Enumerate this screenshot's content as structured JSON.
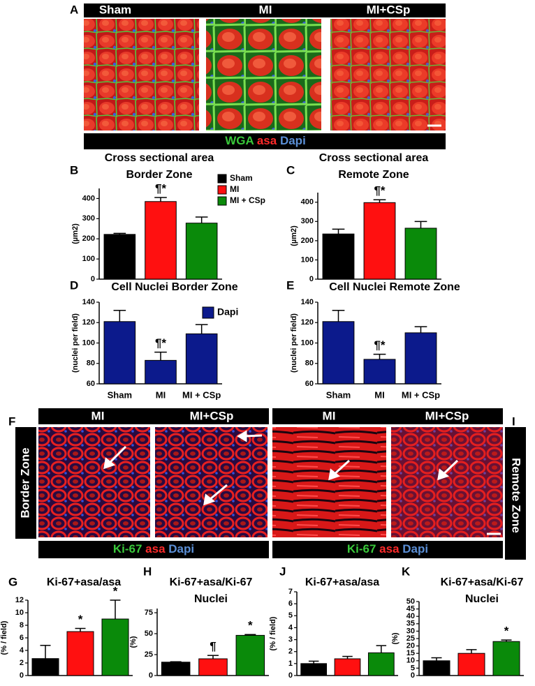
{
  "panel_labels": [
    "A",
    "B",
    "C",
    "D",
    "E",
    "F",
    "I",
    "G",
    "H",
    "J",
    "K"
  ],
  "panel_a": {
    "headers": [
      "Sham",
      "MI",
      "MI+CSp"
    ],
    "stain": [
      {
        "text": "WGA",
        "color": "#39c83a"
      },
      {
        "text": "asa",
        "color": "#ff2a2a"
      },
      {
        "text": "Dapi",
        "color": "#5b8fd6"
      }
    ]
  },
  "panel_f": {
    "headers": [
      "MI",
      "MI+CSp",
      "MI",
      "MI+CSp"
    ],
    "side_labels": [
      "Border Zone",
      "Remote Zone"
    ],
    "stain": [
      {
        "text": "Ki-67",
        "color": "#39c83a"
      },
      {
        "text": "asa",
        "color": "#ff2a2a"
      },
      {
        "text": "Dapi",
        "color": "#5b8fd6"
      }
    ]
  },
  "chart_data": [
    {
      "type": "bar",
      "title": "Cross sectional area",
      "subtitle": "Border Zone",
      "ylabel": "(µm2)",
      "categories": [
        null,
        null,
        null
      ],
      "values": [
        222,
        385,
        278
      ],
      "errors": [
        5,
        20,
        30
      ],
      "colors": [
        "#000000",
        "#ff1010",
        "#0a8a0a"
      ],
      "annotations": [
        null,
        "¶*",
        null
      ],
      "legend": [
        {
          "name": "Sham",
          "color": "#000000"
        },
        {
          "name": "MI",
          "color": "#ff1010"
        },
        {
          "name": "MI + CSp",
          "color": "#0a8a0a"
        }
      ],
      "ylim": [
        0,
        450
      ],
      "yticks": [
        0,
        100,
        200,
        300,
        400
      ]
    },
    {
      "type": "bar",
      "title": "Cross sectional area",
      "subtitle": "Remote Zone",
      "ylabel": "(µm2)",
      "categories": [
        null,
        null,
        null
      ],
      "values": [
        235,
        398,
        265
      ],
      "errors": [
        25,
        15,
        35
      ],
      "colors": [
        "#000000",
        "#ff1010",
        "#0a8a0a"
      ],
      "annotations": [
        null,
        "¶*",
        null
      ],
      "ylim": [
        0,
        450
      ],
      "yticks": [
        0,
        100,
        200,
        300,
        400
      ]
    },
    {
      "type": "bar",
      "title": "Cell Nuclei Border Zone",
      "ylabel": "(nuclei per field)",
      "categories": [
        "Sham",
        "MI",
        "MI + CSp"
      ],
      "values": [
        121,
        83,
        109
      ],
      "errors": [
        11,
        8,
        9
      ],
      "colors": [
        "#0c1a8c",
        "#0c1a8c",
        "#0c1a8c"
      ],
      "annotations": [
        null,
        "¶*",
        null
      ],
      "legend": [
        {
          "name": "Dapi",
          "color": "#0c1a8c"
        }
      ],
      "ylim": [
        60,
        140
      ],
      "yticks": [
        60,
        80,
        100,
        120,
        140
      ]
    },
    {
      "type": "bar",
      "title": "Cell Nuclei Remote Zone",
      "ylabel": "(nuclei per field)",
      "categories": [
        "Sham",
        "MI",
        "MI + CSp"
      ],
      "values": [
        121,
        84,
        110
      ],
      "errors": [
        11,
        5,
        6
      ],
      "colors": [
        "#0c1a8c",
        "#0c1a8c",
        "#0c1a8c"
      ],
      "annotations": [
        null,
        "¶*",
        null
      ],
      "ylim": [
        60,
        140
      ],
      "yticks": [
        60,
        80,
        100,
        120,
        140
      ]
    },
    {
      "type": "bar",
      "title": "Ki-67+asa/asa",
      "ylabel": "(% / field)",
      "categories": [
        null,
        null,
        null
      ],
      "values": [
        2.7,
        7.0,
        9.0
      ],
      "errors": [
        2.1,
        0.5,
        3.0
      ],
      "colors": [
        "#000000",
        "#ff1010",
        "#0a8a0a"
      ],
      "annotations": [
        null,
        "*",
        "*"
      ],
      "ylim": [
        0,
        12
      ],
      "yticks": [
        0,
        2,
        4,
        6,
        8,
        10,
        12
      ]
    },
    {
      "type": "bar",
      "title": "Ki-67+asa/Ki-67",
      "subtitle": "Nuclei",
      "ylabel": "(%)",
      "categories": [
        null,
        null,
        null
      ],
      "values": [
        16,
        20,
        48
      ],
      "errors": [
        0.5,
        4,
        1
      ],
      "colors": [
        "#000000",
        "#ff1010",
        "#0a8a0a"
      ],
      "annotations": [
        null,
        "¶",
        "*"
      ],
      "ylim": [
        0,
        80
      ],
      "yticks": [
        0,
        25,
        50,
        75
      ]
    },
    {
      "type": "bar",
      "title": "Ki-67+asa/asa",
      "ylabel": "(% / field)",
      "categories": [
        null,
        null,
        null
      ],
      "values": [
        1.0,
        1.4,
        1.9
      ],
      "errors": [
        0.2,
        0.2,
        0.6
      ],
      "colors": [
        "#000000",
        "#ff1010",
        "#0a8a0a"
      ],
      "annotations": [
        null,
        null,
        null
      ],
      "ylim": [
        0,
        7
      ],
      "yticks": [
        0,
        1,
        2,
        3,
        4,
        5,
        6,
        7
      ]
    },
    {
      "type": "bar",
      "title": "Ki-67+asa/Ki-67",
      "subtitle": "Nuclei",
      "ylabel": "(%)",
      "categories": [
        null,
        null,
        null
      ],
      "values": [
        10,
        15,
        23
      ],
      "errors": [
        2,
        2.5,
        1
      ],
      "colors": [
        "#000000",
        "#ff1010",
        "#0a8a0a"
      ],
      "annotations": [
        null,
        null,
        "*"
      ],
      "ylim": [
        0,
        50
      ],
      "yticks": [
        0,
        5,
        10,
        15,
        20,
        25,
        30,
        35,
        40,
        45,
        50
      ]
    }
  ]
}
